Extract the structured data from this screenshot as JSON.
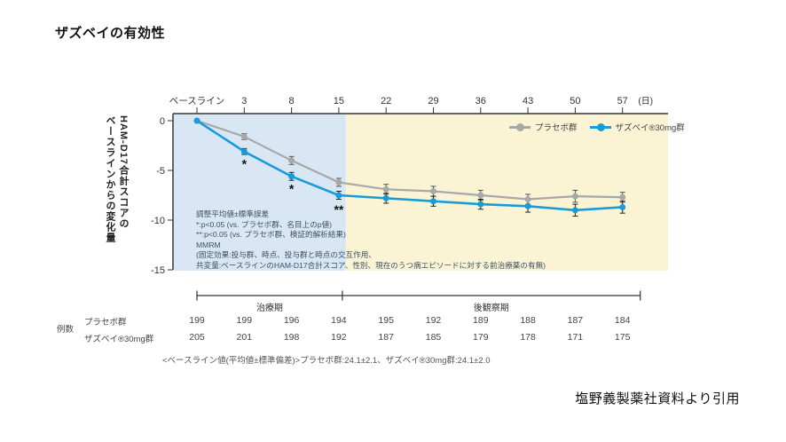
{
  "page": {
    "title": "ザズベイの有効性",
    "citation": "塩野義製薬社資料より引用"
  },
  "chart_data": {
    "type": "line",
    "x_labels": [
      "ベースライン",
      "3",
      "8",
      "15",
      "22",
      "29",
      "36",
      "43",
      "50",
      "57"
    ],
    "x_unit": "(日)",
    "ylabel_line1": "HAM-D17合計スコアの",
    "ylabel_line2": "ベースラインからの変化量",
    "ylim": [
      -15,
      0
    ],
    "yticks": [
      0,
      -5,
      -10,
      -15
    ],
    "series": [
      {
        "name": "プラセボ群",
        "color": "#a8a8a8",
        "errorbar_color": "#555555",
        "values": [
          0,
          -1.6,
          -4.0,
          -6.2,
          -6.9,
          -7.1,
          -7.5,
          -7.9,
          -7.6,
          -7.7
        ],
        "se": [
          0,
          0.3,
          0.4,
          0.4,
          0.5,
          0.5,
          0.5,
          0.5,
          0.6,
          0.5
        ]
      },
      {
        "name": "ザズベイ®30mg群",
        "color": "#189bd8",
        "errorbar_color": "#222222",
        "values": [
          0,
          -3.1,
          -5.6,
          -7.5,
          -7.8,
          -8.1,
          -8.4,
          -8.6,
          -9.0,
          -8.7
        ],
        "se": [
          0,
          0.3,
          0.4,
          0.4,
          0.5,
          0.5,
          0.5,
          0.6,
          0.6,
          0.6
        ]
      }
    ],
    "sig_marks": [
      {
        "x_index": 1,
        "label": "*"
      },
      {
        "x_index": 2,
        "label": "*"
      },
      {
        "x_index": 3,
        "label": "**"
      }
    ],
    "regions": [
      {
        "label": "治療期",
        "color": "#d9e7f4",
        "from_index": 0,
        "to_index": 3
      },
      {
        "label": "後観察期",
        "color": "#faf4d4",
        "from_index": 3,
        "to_index": 9
      }
    ],
    "legend_position": "top-right",
    "grid": false,
    "annotations": [
      "調整平均値±標準誤差",
      "*:p<0.05 (vs. プラセボ群、名目上のp値)",
      "**:p<0.05 (vs. プラセボ群、検証的解析結果)",
      "MMRM",
      "(固定効果:投与群、時点、投与群と時点の交互作用、",
      "共変量:ベースラインのHAM-D17合計スコア、性別、現在のうつ病エピソードに対する前治療薬の有無)"
    ]
  },
  "n_table": {
    "row_header": "例数",
    "rows": [
      {
        "label": "プラセボ群",
        "values": [
          199,
          199,
          196,
          194,
          195,
          192,
          189,
          188,
          187,
          184
        ]
      },
      {
        "label": "ザズベイ®30mg群",
        "values": [
          205,
          201,
          198,
          192,
          187,
          185,
          179,
          178,
          171,
          175
        ]
      }
    ]
  },
  "baseline_note": "<ベースライン値(平均値±標準偏差)>プラセボ群:24.1±2.1、ザズベイ®30mg群:24.1±2.0"
}
